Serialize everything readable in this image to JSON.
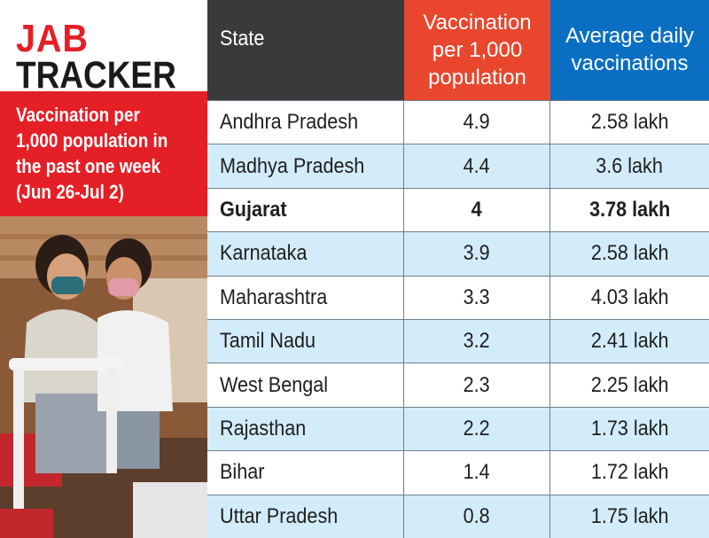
{
  "logo": {
    "line1": "JAB",
    "line2": "TRACKER"
  },
  "description": {
    "lines": [
      "Vaccination per",
      "1,000 population in",
      "the past one week",
      "(Jun 26-Jul 2)"
    ]
  },
  "colors": {
    "brand_red": "#e41f26",
    "header_dark": "#3a3a3c",
    "header_orange": "#e8472e",
    "header_blue": "#0a6fc2",
    "row_alt": "#d3ecfa"
  },
  "table": {
    "headers": {
      "state": "State",
      "vacc": [
        "Vaccination",
        "per 1,000",
        "population"
      ],
      "avg": [
        "Average daily",
        "vaccinations"
      ]
    },
    "rows": [
      {
        "state": "Andhra Pradesh",
        "per_1000": "4.9",
        "avg_daily": "2.58 lakh"
      },
      {
        "state": "Madhya Pradesh",
        "per_1000": "4.4",
        "avg_daily": "3.6 lakh"
      },
      {
        "state": "Gujarat",
        "per_1000": "4",
        "avg_daily": "3.78 lakh",
        "highlight": true
      },
      {
        "state": "Karnataka",
        "per_1000": "3.9",
        "avg_daily": "2.58 lakh"
      },
      {
        "state": "Maharashtra",
        "per_1000": "3.3",
        "avg_daily": "4.03 lakh"
      },
      {
        "state": "Tamil Nadu",
        "per_1000": "3.2",
        "avg_daily": "2.41 lakh"
      },
      {
        "state": "West Bengal",
        "per_1000": "2.3",
        "avg_daily": "2.25 lakh"
      },
      {
        "state": "Rajasthan",
        "per_1000": "2.2",
        "avg_daily": "1.73 lakh"
      },
      {
        "state": "Bihar",
        "per_1000": "1.4",
        "avg_daily": "1.72 lakh"
      },
      {
        "state": "Uttar Pradesh",
        "per_1000": "0.8",
        "avg_daily": "1.75 lakh"
      }
    ]
  },
  "chart_data": {
    "type": "table",
    "columns": [
      "State",
      "Vaccination per 1,000 population",
      "Average daily vaccinations"
    ],
    "categories": [
      "Andhra Pradesh",
      "Madhya Pradesh",
      "Gujarat",
      "Karnataka",
      "Maharashtra",
      "Tamil Nadu",
      "West Bengal",
      "Rajasthan",
      "Bihar",
      "Uttar Pradesh"
    ],
    "series": [
      {
        "name": "Vaccination per 1,000 population",
        "values": [
          4.9,
          4.4,
          4,
          3.9,
          3.3,
          3.2,
          2.3,
          2.2,
          1.4,
          0.8
        ]
      },
      {
        "name": "Average daily vaccinations",
        "values": [
          2.58,
          3.6,
          3.78,
          2.58,
          4.03,
          2.41,
          2.25,
          1.73,
          1.72,
          1.75
        ],
        "unit": "lakh"
      }
    ]
  }
}
